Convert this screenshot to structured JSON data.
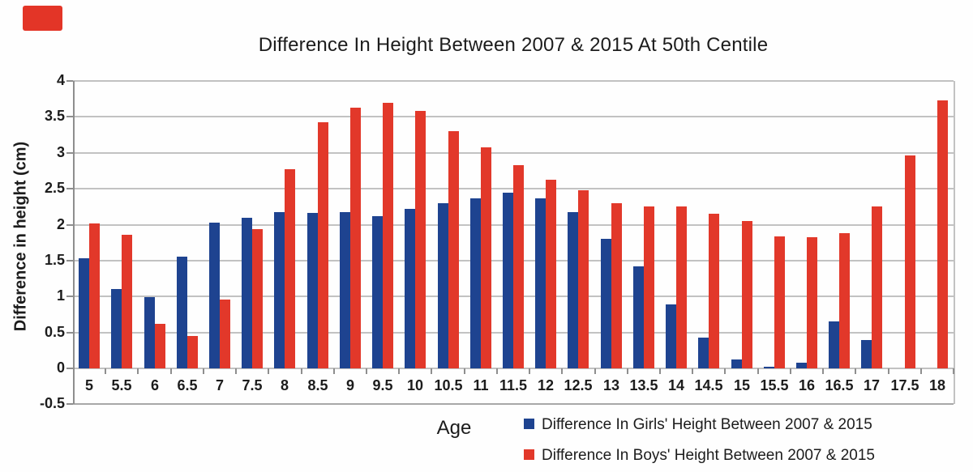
{
  "title": "Difference In Height Between 2007 & 2015 At 50th Centile",
  "chart_data": {
    "type": "bar",
    "title": "Difference In Height Between 2007 & 2015 At 50th Centile",
    "xlabel": "Age",
    "ylabel": "Difference in height (cm)",
    "ylim": [
      -0.5,
      4
    ],
    "yticks": [
      4,
      3.5,
      3,
      2.5,
      2,
      1.5,
      1,
      0.5,
      0,
      -0.5
    ],
    "grid": true,
    "legend_position": "bottom-right",
    "categories": [
      5,
      5.5,
      6,
      6.5,
      7,
      7.5,
      8,
      8.5,
      9,
      9.5,
      10,
      10.5,
      11,
      11.5,
      12,
      12.5,
      13,
      13.5,
      14,
      14.5,
      15,
      15.5,
      16,
      16.5,
      17,
      17.5,
      18
    ],
    "series": [
      {
        "name": "Difference In Girls' Height Between 2007 & 2015",
        "color": "#1e4390",
        "values": [
          1.53,
          1.1,
          0.99,
          1.56,
          2.03,
          2.1,
          2.18,
          2.16,
          2.18,
          2.12,
          2.22,
          2.3,
          2.37,
          2.44,
          2.37,
          2.17,
          1.8,
          1.42,
          0.89,
          0.43,
          0.12,
          0.02,
          0.08,
          0.65,
          0.39,
          0,
          0
        ]
      },
      {
        "name": "Difference In Boys' Height Between 2007 & 2015",
        "color": "#e2382a",
        "values": [
          2.02,
          1.86,
          0.62,
          0.45,
          0.96,
          1.94,
          2.77,
          3.43,
          3.63,
          3.7,
          3.58,
          3.3,
          3.08,
          2.83,
          2.63,
          2.48,
          2.3,
          2.25,
          2.25,
          2.15,
          2.05,
          1.84,
          1.83,
          1.88,
          2.25,
          2.96,
          3.73
        ]
      }
    ]
  },
  "colors": {
    "background": "#fefefe",
    "girls_bar": "#1e4390",
    "boys_bar": "#e2382a",
    "gridline": "#c2c2c2",
    "bottom_line": "#a8a8a8",
    "axis_line": "#8e8e8e",
    "text": "#1c1c1c",
    "logo_red": "#e33527"
  }
}
